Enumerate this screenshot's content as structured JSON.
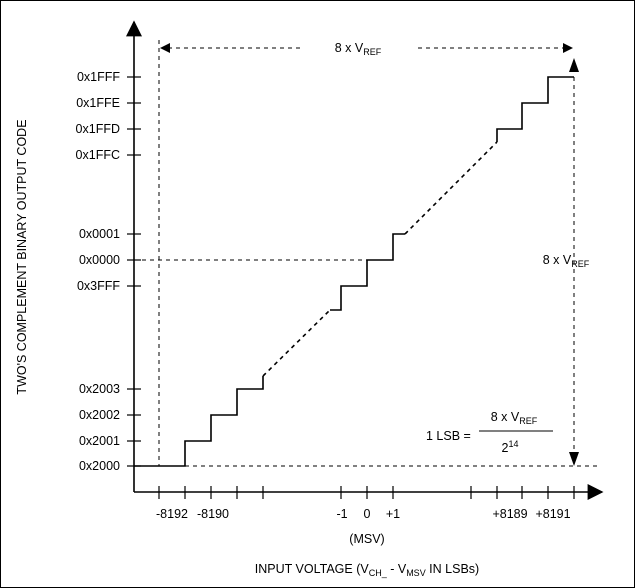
{
  "y_axis_label": "TWO'S COMPLEMENT BINARY OUTPUT CODE",
  "x_axis_label": {
    "prefix": "INPUT VOLTAGE (V",
    "sub1": "CH_",
    "mid": " - V",
    "sub2": "MSV",
    "suffix": " IN LSBs)"
  },
  "msv_label": "(MSV)",
  "y_ticks": [
    "0x1FFF",
    "0x1FFE",
    "0x1FFD",
    "0x1FFC",
    "0x0001",
    "0x0000",
    "0x3FFF",
    "0x2003",
    "0x2002",
    "0x2001",
    "0x2000"
  ],
  "x_ticks": [
    "-8192",
    "-8190",
    "-1",
    "0",
    "+1",
    "+8189",
    "+8191"
  ],
  "top_span": {
    "prefix": "8 x V",
    "sub": "REF"
  },
  "right_span": {
    "prefix": "8 x V",
    "sub": "REF"
  },
  "lsb_formula": {
    "lhs": "1 LSB =",
    "num_prefix": "8 x V",
    "num_sub": "REF",
    "den_base": "2",
    "den_exp": "14"
  },
  "colors": {
    "line": "#000000",
    "background": "#ffffff"
  }
}
